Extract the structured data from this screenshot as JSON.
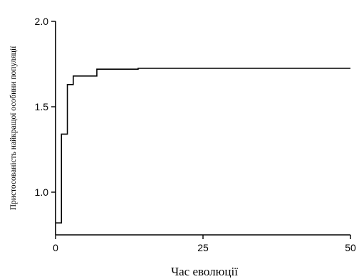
{
  "chart_data": {
    "type": "line",
    "step": true,
    "xlabel": "Час еволюції",
    "ylabel": "Пристосованість найкращої особини популяції",
    "xlim": [
      0,
      50
    ],
    "ylim": [
      0.75,
      2.0
    ],
    "xticks": [
      0,
      25,
      50
    ],
    "yticks": [
      1.0,
      1.5,
      2.0
    ],
    "xtick_labels": [
      "0",
      "25",
      "50"
    ],
    "ytick_labels": [
      "1.0",
      "1.5",
      "2.0"
    ],
    "grid": false,
    "legend": "none",
    "line_color": "#000000",
    "series": [
      {
        "x": [
          0,
          1,
          2,
          3,
          7,
          14,
          50
        ],
        "values": [
          0.82,
          1.34,
          1.63,
          1.68,
          1.72,
          1.725,
          1.725
        ]
      }
    ]
  }
}
